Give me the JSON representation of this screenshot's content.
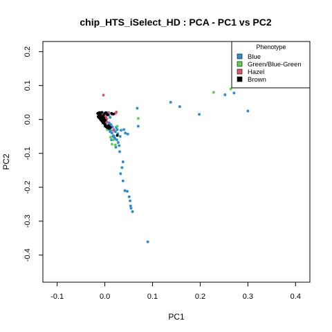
{
  "chart_data": {
    "type": "scatter",
    "title": "chip_HTS_iSelect_HD : PCA - PC1 vs PC2",
    "xlabel": "PC1",
    "ylabel": "PC2",
    "xlim": [
      -0.13,
      0.43
    ],
    "ylim": [
      -0.48,
      0.23
    ],
    "xticks": [
      -0.1,
      0.0,
      0.1,
      0.2,
      0.3,
      0.4
    ],
    "xtick_labels": [
      "-0.1",
      "0.0",
      "0.1",
      "0.2",
      "0.3",
      "0.4"
    ],
    "yticks": [
      0.2,
      0.1,
      0.0,
      -0.1,
      -0.2,
      -0.3,
      -0.4
    ],
    "ytick_labels": [
      "0.2",
      "0.1",
      "0.0",
      "-0.1",
      "-0.2",
      "-0.3",
      "-0.4"
    ],
    "grid": false,
    "legend": {
      "title": "Phenotype",
      "position": "top-right"
    },
    "series": [
      {
        "name": "Blue",
        "color": "#2e8ece",
        "points": [
          [
            0.138,
            0.051
          ],
          [
            0.157,
            0.038
          ],
          [
            0.198,
            0.015
          ],
          [
            0.252,
            0.073
          ],
          [
            0.271,
            0.078
          ],
          [
            0.3,
            0.025
          ],
          [
            0.068,
            0.033
          ],
          [
            0.09,
            -0.361
          ],
          [
            0.038,
            -0.181
          ],
          [
            0.042,
            -0.21
          ],
          [
            0.047,
            -0.212
          ],
          [
            0.051,
            -0.228
          ],
          [
            0.053,
            -0.24
          ],
          [
            0.054,
            -0.255
          ],
          [
            0.055,
            -0.262
          ],
          [
            0.058,
            -0.272
          ],
          [
            0.033,
            -0.16
          ],
          [
            0.036,
            -0.142
          ],
          [
            0.038,
            -0.125
          ],
          [
            0.031,
            -0.095
          ],
          [
            0.03,
            -0.077
          ],
          [
            0.028,
            -0.068
          ],
          [
            0.025,
            -0.06
          ],
          [
            0.023,
            -0.082
          ],
          [
            0.02,
            -0.052
          ],
          [
            0.018,
            -0.048
          ],
          [
            0.015,
            -0.04
          ],
          [
            0.012,
            -0.033
          ],
          [
            0.01,
            -0.028
          ],
          [
            0.008,
            -0.025
          ],
          [
            0.006,
            -0.02
          ],
          [
            0.004,
            -0.018
          ],
          [
            0.002,
            -0.015
          ],
          [
            0.0,
            -0.01
          ],
          [
            -0.002,
            -0.005
          ],
          [
            -0.004,
            -0.002
          ],
          [
            -0.006,
            0.002
          ],
          [
            -0.008,
            0.005
          ],
          [
            -0.01,
            0.008
          ],
          [
            -0.012,
            0.01
          ],
          [
            -0.011,
            0.015
          ],
          [
            -0.009,
            0.013
          ],
          [
            -0.007,
            0.011
          ],
          [
            0.001,
            0.003
          ],
          [
            0.003,
            -0.006
          ],
          [
            0.009,
            -0.01
          ],
          [
            0.013,
            -0.015
          ],
          [
            0.016,
            -0.022
          ],
          [
            0.019,
            -0.03
          ],
          [
            0.022,
            -0.036
          ],
          [
            0.026,
            -0.03
          ],
          [
            0.034,
            -0.032
          ],
          [
            0.04,
            -0.03
          ],
          [
            0.043,
            -0.04
          ],
          [
            0.048,
            -0.043
          ],
          [
            0.014,
            -0.06
          ],
          [
            0.017,
            -0.05
          ],
          [
            0.024,
            -0.023
          ],
          [
            0.004,
            0.018
          ],
          [
            0.008,
            0.013
          ],
          [
            0.011,
            0.006
          ],
          [
            0.0,
            -0.02
          ],
          [
            0.006,
            -0.03
          ],
          [
            0.011,
            -0.036
          ],
          [
            0.021,
            -0.056
          ],
          [
            0.027,
            -0.042
          ],
          [
            0.032,
            -0.05
          ],
          [
            0.07,
            -0.02
          ],
          [
            0.005,
            0.02
          ]
        ]
      },
      {
        "name": "Green/Blue-Green",
        "color": "#61d04f",
        "points": [
          [
            0.228,
            0.08
          ],
          [
            0.264,
            0.09
          ],
          [
            0.07,
            0.003
          ],
          [
            0.018,
            -0.06
          ],
          [
            0.015,
            -0.073
          ],
          [
            0.022,
            -0.075
          ],
          [
            0.012,
            -0.052
          ],
          [
            0.026,
            -0.02
          ],
          [
            0.005,
            -0.03
          ]
        ]
      },
      {
        "name": "Hazel",
        "color": "#df536b",
        "points": [
          [
            -0.003,
            0.072
          ],
          [
            0.024,
            0.022
          ],
          [
            0.022,
            0.018
          ],
          [
            0.0,
            0.0
          ],
          [
            -0.005,
            0.01
          ],
          [
            -0.002,
            0.015
          ],
          [
            0.002,
            0.008
          ],
          [
            0.005,
            -0.008
          ],
          [
            0.0,
            -0.006
          ],
          [
            0.018,
            -0.032
          ],
          [
            0.008,
            0.02
          ],
          [
            0.015,
            0.015
          ],
          [
            -0.008,
            0.0
          ],
          [
            0.004,
            0.002
          ]
        ]
      },
      {
        "name": "Brown",
        "color": "#000000",
        "points": [
          [
            -0.015,
            0.018
          ],
          [
            -0.013,
            0.016
          ],
          [
            -0.011,
            0.014
          ],
          [
            -0.01,
            0.012
          ],
          [
            -0.009,
            0.017
          ],
          [
            -0.008,
            0.009
          ],
          [
            -0.007,
            0.006
          ],
          [
            -0.006,
            0.003
          ],
          [
            -0.005,
            0.0
          ],
          [
            -0.004,
            -0.003
          ],
          [
            -0.003,
            -0.006
          ],
          [
            -0.002,
            -0.008
          ],
          [
            -0.001,
            -0.012
          ],
          [
            0.0,
            -0.015
          ],
          [
            0.001,
            -0.018
          ],
          [
            0.002,
            -0.02
          ],
          [
            0.003,
            -0.022
          ],
          [
            0.005,
            -0.024
          ],
          [
            0.007,
            -0.025
          ],
          [
            0.009,
            -0.026
          ],
          [
            -0.012,
            0.011
          ],
          [
            -0.014,
            0.009
          ],
          [
            -0.013,
            0.006
          ],
          [
            -0.011,
            0.004
          ],
          [
            -0.01,
            0.002
          ],
          [
            -0.008,
            -0.002
          ],
          [
            -0.006,
            -0.005
          ],
          [
            -0.004,
            -0.01
          ],
          [
            -0.003,
            0.012
          ],
          [
            0.0,
            0.018
          ],
          [
            0.002,
            0.02
          ],
          [
            0.004,
            0.016
          ],
          [
            0.006,
            0.014
          ],
          [
            -0.009,
            0.02
          ],
          [
            -0.006,
            0.021
          ],
          [
            -0.012,
            0.02
          ],
          [
            0.008,
            -0.018
          ],
          [
            0.01,
            -0.022
          ],
          [
            0.012,
            -0.024
          ],
          [
            0.014,
            0.018
          ],
          [
            0.018,
            0.016
          ],
          [
            -0.005,
            0.008
          ],
          [
            -0.002,
            0.004
          ],
          [
            0.001,
            -0.002
          ],
          [
            0.026,
            -0.047
          ]
        ]
      }
    ]
  }
}
